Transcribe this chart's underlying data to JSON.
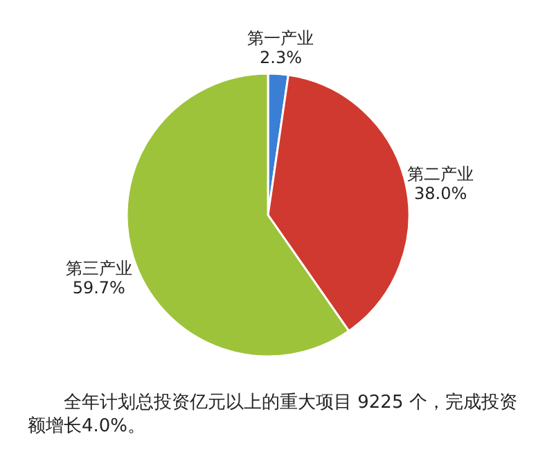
{
  "chart_data": {
    "type": "pie",
    "categories": [
      "第一产业",
      "第二产业",
      "第三产业"
    ],
    "values": [
      2.3,
      38.0,
      59.7
    ],
    "colors": [
      "#3a7fd5",
      "#d0392f",
      "#9dc33b"
    ],
    "value_labels": [
      "2.3%",
      "38.0%",
      "59.7%"
    ],
    "annotations": [
      "全年计划总投资亿元以上的重大项目 9225 个，完成投资额增长4.0%。"
    ]
  }
}
